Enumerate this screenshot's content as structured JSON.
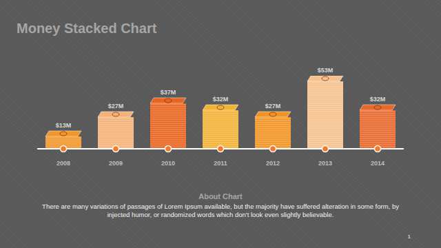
{
  "chart_data": {
    "type": "bar",
    "title": "Money Stacked Chart",
    "categories": [
      "2008",
      "2009",
      "2010",
      "2011",
      "2012",
      "2013",
      "2014"
    ],
    "values": [
      13,
      27,
      37,
      32,
      27,
      53,
      32
    ],
    "value_labels": [
      "$13M",
      "$27M",
      "$37M",
      "$32M",
      "$27M",
      "$53M",
      "$32M"
    ],
    "colors": [
      "#f0962a",
      "#f5b277",
      "#e8651f",
      "#f2b236",
      "#f29424",
      "#f7c18d",
      "#e8682c"
    ],
    "data_labels": true,
    "tick_labels": "x",
    "grid": false
  },
  "notes": {
    "heading": "About Chart",
    "text": "There are many variations of passages of Lorem Ipsum available, but the majority have suffered alteration in some form, by injected humor, or randomized words which don't look even slightly believable."
  },
  "page_number": 1
}
